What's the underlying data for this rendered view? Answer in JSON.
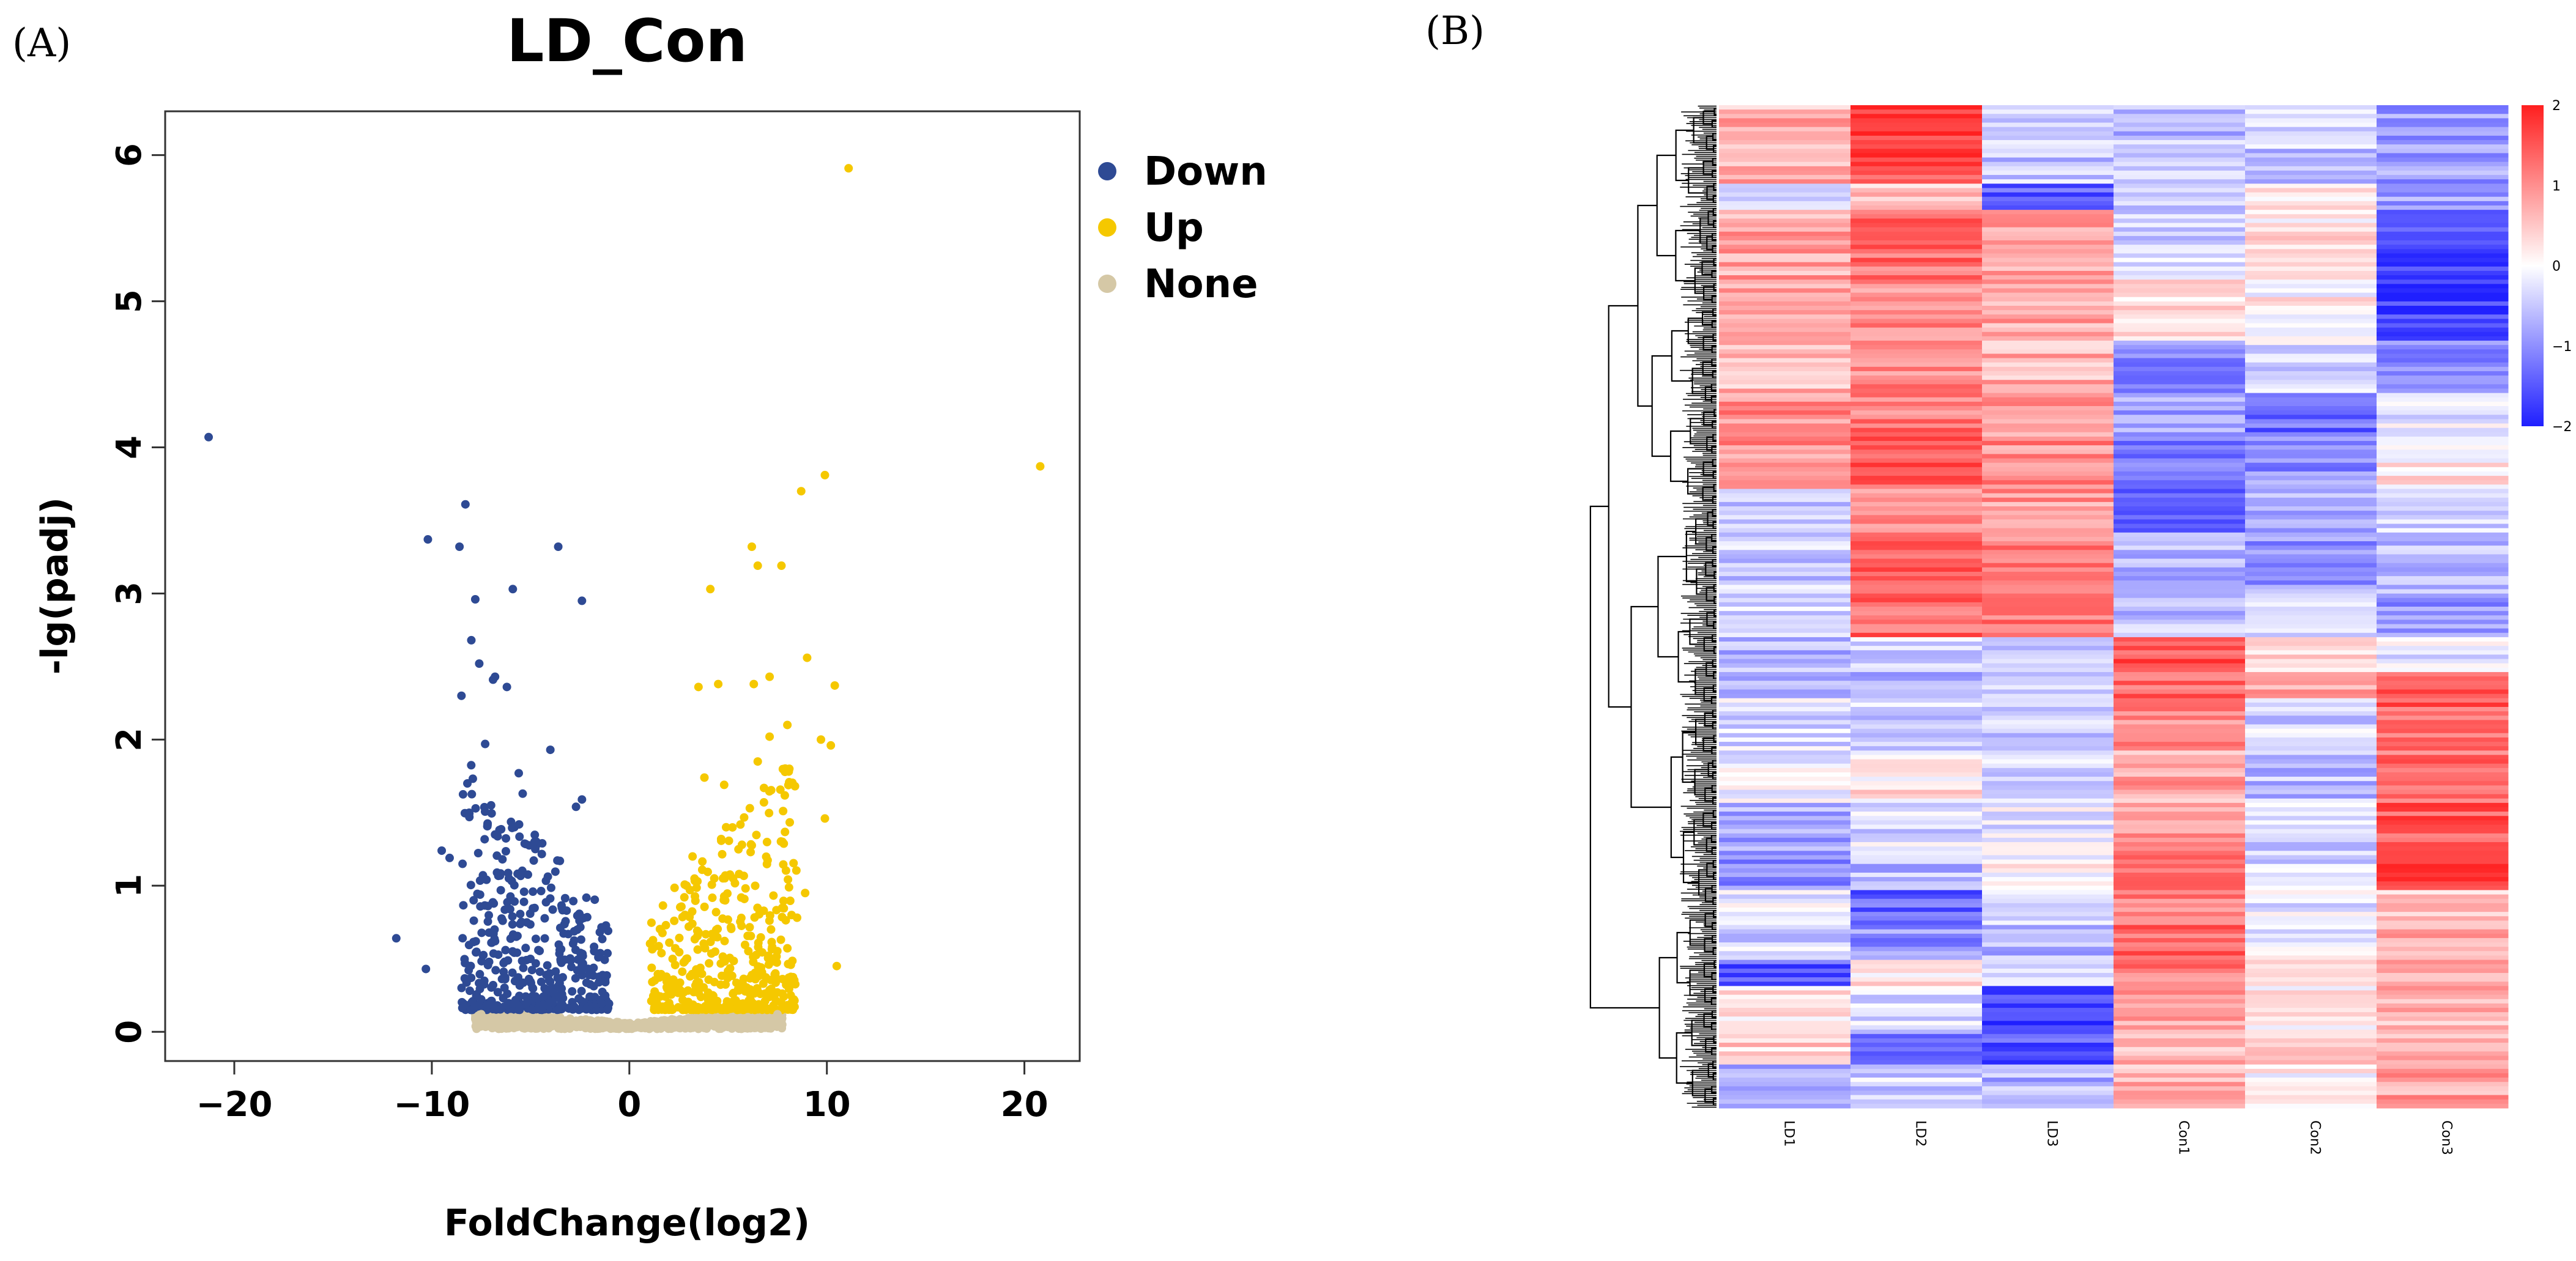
{
  "panels": {
    "a_label": "(A)",
    "b_label": "(B)"
  },
  "chart_data": [
    {
      "type": "scatter",
      "title": "LD_Con",
      "xlabel": "FoldChange(log2)",
      "ylabel": "-lg(padj)",
      "xlim": [
        -23.5,
        22.8
      ],
      "ylim": [
        -0.2,
        6.3
      ],
      "xticks": [
        -20,
        -10,
        0,
        10,
        20
      ],
      "yticks": [
        0,
        1,
        2,
        3,
        4,
        5,
        6
      ],
      "legend_position": "right",
      "colors": {
        "Down": "#2e4a94",
        "Up": "#f5c800",
        "None": "#d5c8a6"
      },
      "legend": [
        {
          "name": "Down",
          "color": "#2e4a94"
        },
        {
          "name": "Up",
          "color": "#f5c800"
        },
        {
          "name": "None",
          "color": "#d5c8a6"
        }
      ],
      "series": [
        {
          "name": "Down",
          "points": [
            [
              -21.3,
              4.07
            ],
            [
              -10.2,
              3.37
            ],
            [
              -8.6,
              3.32
            ],
            [
              -8.3,
              3.61
            ],
            [
              -7.8,
              2.96
            ],
            [
              -5.9,
              3.03
            ],
            [
              -3.6,
              3.32
            ],
            [
              -2.4,
              2.95
            ],
            [
              -8.0,
              2.68
            ],
            [
              -7.6,
              2.52
            ],
            [
              -6.8,
              2.43
            ],
            [
              -6.2,
              2.36
            ],
            [
              -8.5,
              2.3
            ],
            [
              -7.3,
              1.97
            ],
            [
              -4.0,
              1.93
            ],
            [
              -6.9,
              2.41
            ],
            [
              -5.6,
              1.77
            ],
            [
              -8.2,
              1.7
            ],
            [
              -5.4,
              1.63
            ],
            [
              -2.4,
              1.59
            ],
            [
              -2.7,
              1.54
            ],
            [
              -7.0,
              1.55
            ],
            [
              -8.1,
              1.47
            ],
            [
              -9.5,
              1.24
            ],
            [
              -9.1,
              1.19
            ],
            [
              -6.8,
              1.35
            ],
            [
              -11.8,
              0.64
            ],
            [
              -10.3,
              0.43
            ],
            [
              -4.8,
              1.3
            ],
            [
              -6.1,
              1.05
            ]
          ]
        },
        {
          "name": "Up",
          "points": [
            [
              11.1,
              5.91
            ],
            [
              20.8,
              3.87
            ],
            [
              9.9,
              3.81
            ],
            [
              8.7,
              3.7
            ],
            [
              6.2,
              3.32
            ],
            [
              6.5,
              3.19
            ],
            [
              7.7,
              3.19
            ],
            [
              4.1,
              3.03
            ],
            [
              9.0,
              2.56
            ],
            [
              7.1,
              2.43
            ],
            [
              6.3,
              2.38
            ],
            [
              3.5,
              2.36
            ],
            [
              4.5,
              2.38
            ],
            [
              10.4,
              2.37
            ],
            [
              8.0,
              2.1
            ],
            [
              9.7,
              2.0
            ],
            [
              10.2,
              1.96
            ],
            [
              7.1,
              2.02
            ],
            [
              6.5,
              1.85
            ],
            [
              8.1,
              1.8
            ],
            [
              4.8,
              1.69
            ],
            [
              3.8,
              1.74
            ],
            [
              6.1,
              1.53
            ],
            [
              9.9,
              1.46
            ],
            [
              10.5,
              0.45
            ],
            [
              8.9,
              0.95
            ],
            [
              5.7,
              1.28
            ],
            [
              4.9,
              1.4
            ],
            [
              3.2,
              1.2
            ],
            [
              2.9,
              1.0
            ]
          ]
        },
        {
          "name": "None",
          "points": [
            [
              -7.5,
              0.12
            ],
            [
              -6.0,
              0.1
            ],
            [
              -4.5,
              0.08
            ],
            [
              -3.0,
              0.06
            ],
            [
              -1.5,
              0.05
            ],
            [
              -0.5,
              0.03
            ],
            [
              0.5,
              0.03
            ],
            [
              1.5,
              0.05
            ],
            [
              3.0,
              0.06
            ],
            [
              4.5,
              0.08
            ],
            [
              6.0,
              0.1
            ],
            [
              7.5,
              0.12
            ]
          ]
        }
      ]
    },
    {
      "type": "heatmap",
      "columns": [
        "LD1",
        "LD2",
        "LD3",
        "Con1",
        "Con2",
        "Con3"
      ],
      "colorbar": {
        "min": -2,
        "max": 2,
        "ticks": [
          "2",
          "1",
          "0",
          "−1",
          "−2"
        ]
      },
      "color_scale": {
        "low": "#1f1fff",
        "mid": "#ffffff",
        "high": "#ff1f1f"
      },
      "row_blocks": [
        {
          "rows": 18,
          "values": [
            0.7,
            1.6,
            -0.5,
            -0.6,
            -0.5,
            -0.9
          ]
        },
        {
          "rows": 6,
          "values": [
            -0.3,
            0.5,
            -1.4,
            -0.4,
            0.3,
            -0.8
          ]
        },
        {
          "rows": 16,
          "values": [
            0.8,
            1.3,
            0.9,
            -0.4,
            0.2,
            -1.6
          ]
        },
        {
          "rows": 14,
          "values": [
            0.9,
            1.0,
            0.8,
            0.2,
            0.1,
            -1.7
          ]
        },
        {
          "rows": 12,
          "values": [
            0.6,
            1.1,
            0.7,
            -1.0,
            -0.3,
            -1.2
          ]
        },
        {
          "rows": 10,
          "values": [
            1.0,
            1.2,
            0.8,
            -0.9,
            -1.3,
            -0.2
          ]
        },
        {
          "rows": 12,
          "values": [
            1.0,
            1.4,
            1.0,
            -1.1,
            -1.0,
            0.2
          ]
        },
        {
          "rows": 10,
          "values": [
            -0.6,
            1.1,
            0.9,
            -1.4,
            -0.8,
            -0.3
          ]
        },
        {
          "rows": 14,
          "values": [
            -0.5,
            1.5,
            1.2,
            -0.7,
            -0.9,
            -0.6
          ]
        },
        {
          "rows": 10,
          "values": [
            -0.3,
            1.4,
            1.3,
            -0.6,
            -0.4,
            -0.9
          ]
        },
        {
          "rows": 8,
          "values": [
            -0.7,
            -0.4,
            -0.6,
            1.5,
            0.3,
            -0.2
          ]
        },
        {
          "rows": 6,
          "values": [
            -0.5,
            -0.7,
            -0.5,
            1.3,
            0.8,
            1.6
          ]
        },
        {
          "rows": 12,
          "values": [
            -0.3,
            -0.4,
            -0.5,
            1.0,
            -0.4,
            1.4
          ]
        },
        {
          "rows": 12,
          "values": [
            -0.1,
            0.2,
            -0.3,
            0.8,
            -0.6,
            1.3
          ]
        },
        {
          "rows": 12,
          "values": [
            -0.8,
            -0.3,
            -0.2,
            0.9,
            -0.4,
            1.5
          ]
        },
        {
          "rows": 8,
          "values": [
            -1.0,
            -0.6,
            0.1,
            1.1,
            -0.3,
            1.6
          ]
        },
        {
          "rows": 8,
          "values": [
            -0.2,
            -1.4,
            -0.4,
            1.2,
            -0.2,
            0.5
          ]
        },
        {
          "rows": 8,
          "values": [
            -0.4,
            -1.0,
            -0.6,
            1.3,
            -0.1,
            0.8
          ]
        },
        {
          "rows": 6,
          "values": [
            -1.5,
            0.2,
            -0.2,
            1.1,
            0.3,
            0.7
          ]
        },
        {
          "rows": 10,
          "values": [
            0.3,
            -0.3,
            -1.6,
            0.9,
            0.2,
            0.6
          ]
        },
        {
          "rows": 8,
          "values": [
            0.4,
            -1.1,
            -1.5,
            0.6,
            0.4,
            0.7
          ]
        },
        {
          "rows": 10,
          "values": [
            -0.7,
            -0.4,
            -0.7,
            0.7,
            0.1,
            0.8
          ]
        }
      ]
    }
  ]
}
